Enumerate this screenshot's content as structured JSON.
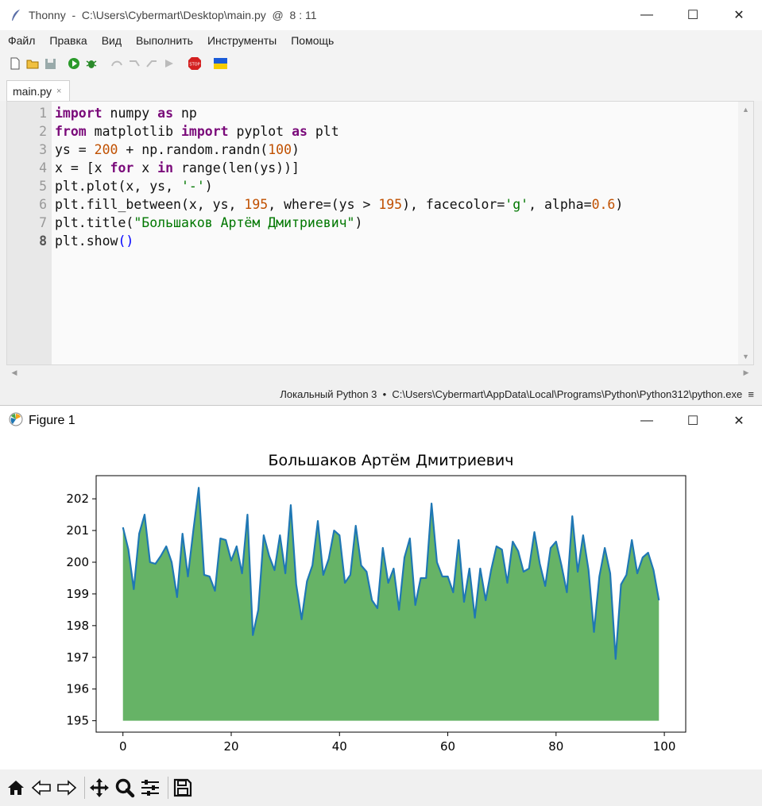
{
  "thonny": {
    "title": "Thonny  -  C:\\Users\\Cybermart\\Desktop\\main.py  @  8 : 11",
    "menu": [
      "Файл",
      "Правка",
      "Вид",
      "Выполнить",
      "Инструменты",
      "Помощь"
    ],
    "tab_label": "main.py",
    "tab_close": "×",
    "line_numbers": [
      "1",
      "2",
      "3",
      "4",
      "5",
      "6",
      "7",
      "8"
    ],
    "code_lines": [
      [
        [
          "kw",
          "import"
        ],
        [
          "t",
          " numpy "
        ],
        [
          "kw",
          "as"
        ],
        [
          "t",
          " np"
        ]
      ],
      [
        [
          "kw",
          "from"
        ],
        [
          "t",
          " matplotlib "
        ],
        [
          "kw",
          "import"
        ],
        [
          "t",
          " pyplot "
        ],
        [
          "kw",
          "as"
        ],
        [
          "t",
          " plt"
        ]
      ],
      [
        [
          "t",
          "ys = "
        ],
        [
          "num",
          "200"
        ],
        [
          "t",
          " + np.random.randn("
        ],
        [
          "num",
          "100"
        ],
        [
          "t",
          ")"
        ]
      ],
      [
        [
          "t",
          "x = [x "
        ],
        [
          "kw",
          "for"
        ],
        [
          "t",
          " x "
        ],
        [
          "kw",
          "in"
        ],
        [
          "t",
          " range(len(ys))]"
        ]
      ],
      [
        [
          "t",
          "plt.plot(x, ys, "
        ],
        [
          "str",
          "'-'"
        ],
        [
          "t",
          ")"
        ]
      ],
      [
        [
          "t",
          "plt.fill_between(x, ys, "
        ],
        [
          "num",
          "195"
        ],
        [
          "t",
          ", where=(ys > "
        ],
        [
          "num",
          "195"
        ],
        [
          "t",
          "), facecolor="
        ],
        [
          "str",
          "'g'"
        ],
        [
          "t",
          ", alpha="
        ],
        [
          "num",
          "0.6"
        ],
        [
          "t",
          ")"
        ]
      ],
      [
        [
          "t",
          "plt.title("
        ],
        [
          "str",
          "\"Большаков Артём Дмитриевич\""
        ],
        [
          "t",
          ")"
        ]
      ],
      [
        [
          "t",
          "plt.show"
        ],
        [
          "paren",
          "()"
        ]
      ]
    ],
    "status": "Локальный Python 3  •  C:\\Users\\Cybermart\\AppData\\Local\\Programs\\Python\\Python312\\python.exe  ≡",
    "colors": {
      "keyword": "#7a0a7a",
      "number": "#c05000",
      "string": "#007700",
      "paren": "#0000ff"
    }
  },
  "figure": {
    "title": "Figure 1",
    "toolbar_icons": [
      "home-icon",
      "back-icon",
      "forward-icon",
      "pan-icon",
      "zoom-icon",
      "configure-icon",
      "save-icon"
    ]
  },
  "window_controls": {
    "minimize": "—",
    "maximize": "☐",
    "close": "✕"
  },
  "chart_data": {
    "type": "area",
    "title": "Большаков Артём Дмитриевич",
    "xlabel": "",
    "ylabel": "",
    "xlim": [
      -4.95,
      103.95
    ],
    "ylim": [
      194.64,
      202.73
    ],
    "xticks": [
      0,
      20,
      40,
      60,
      80,
      100
    ],
    "yticks": [
      195,
      196,
      197,
      198,
      199,
      200,
      201,
      202
    ],
    "fill_baseline": 195,
    "line_color": "#1f77b4",
    "fill_color": "#008000",
    "fill_alpha": 0.6,
    "grid": false,
    "x": [
      0,
      1,
      2,
      3,
      4,
      5,
      6,
      7,
      8,
      9,
      10,
      11,
      12,
      13,
      14,
      15,
      16,
      17,
      18,
      19,
      20,
      21,
      22,
      23,
      24,
      25,
      26,
      27,
      28,
      29,
      30,
      31,
      32,
      33,
      34,
      35,
      36,
      37,
      38,
      39,
      40,
      41,
      42,
      43,
      44,
      45,
      46,
      47,
      48,
      49,
      50,
      51,
      52,
      53,
      54,
      55,
      56,
      57,
      58,
      59,
      60,
      61,
      62,
      63,
      64,
      65,
      66,
      67,
      68,
      69,
      70,
      71,
      72,
      73,
      74,
      75,
      76,
      77,
      78,
      79,
      80,
      81,
      82,
      83,
      84,
      85,
      86,
      87,
      88,
      89,
      90,
      91,
      92,
      93,
      94,
      95,
      96,
      97,
      98,
      99
    ],
    "y": [
      201.1,
      200.4,
      199.15,
      200.9,
      201.5,
      200.0,
      199.95,
      200.2,
      200.5,
      200.0,
      198.9,
      200.9,
      199.55,
      201.0,
      202.35,
      199.6,
      199.55,
      199.1,
      200.75,
      200.7,
      200.05,
      200.5,
      199.65,
      201.5,
      197.7,
      198.5,
      200.85,
      200.2,
      199.75,
      200.85,
      199.65,
      201.8,
      199.3,
      198.2,
      199.4,
      199.9,
      201.3,
      199.6,
      200.1,
      201.0,
      200.85,
      199.35,
      199.6,
      201.15,
      199.9,
      199.7,
      198.8,
      198.55,
      200.45,
      199.35,
      199.8,
      198.5,
      200.15,
      200.75,
      198.65,
      199.5,
      199.5,
      201.85,
      200.0,
      199.55,
      199.55,
      199.05,
      200.7,
      198.75,
      199.8,
      198.25,
      199.8,
      198.8,
      199.75,
      200.5,
      200.4,
      199.35,
      200.65,
      200.35,
      199.7,
      199.8,
      200.95,
      199.95,
      199.25,
      200.45,
      200.65,
      199.9,
      199.05,
      201.45,
      199.7,
      200.85,
      199.75,
      197.8,
      199.55,
      200.45,
      199.65,
      196.95,
      199.3,
      199.6,
      200.7,
      199.65,
      200.15,
      200.3,
      199.75,
      198.8
    ]
  }
}
